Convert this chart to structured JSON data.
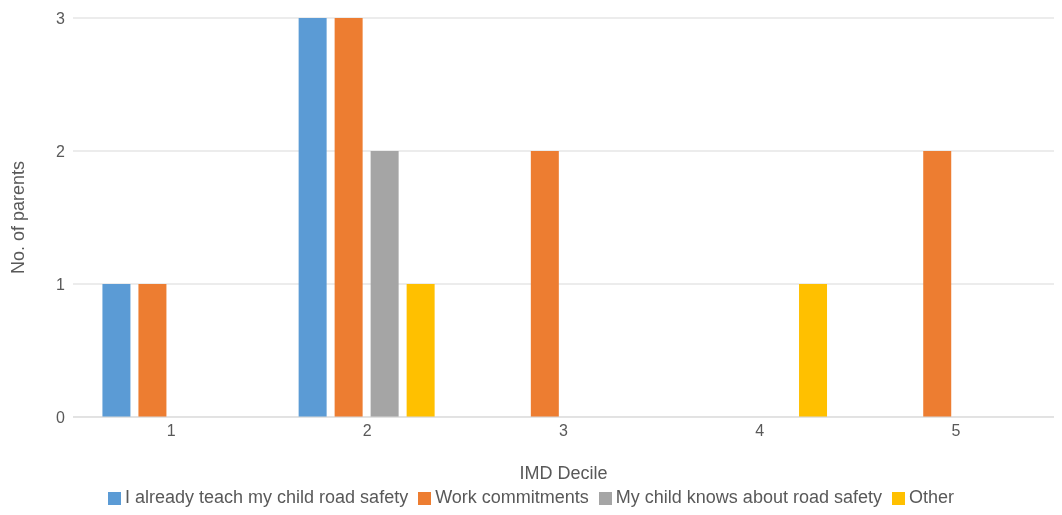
{
  "chart_data": {
    "type": "bar",
    "xlabel": "IMD Decile",
    "ylabel": "No. of parents",
    "categories": [
      "1",
      "2",
      "3",
      "4",
      "5"
    ],
    "series": [
      {
        "name": "I already teach my child road safety",
        "color": "#5b9bd5",
        "values": [
          1,
          3,
          0,
          0,
          0
        ]
      },
      {
        "name": "Work commitments",
        "color": "#ed7d31",
        "values": [
          1,
          3,
          2,
          0,
          2
        ]
      },
      {
        "name": "My child knows about road safety",
        "color": "#a5a5a5",
        "values": [
          0,
          2,
          0,
          0,
          0
        ]
      },
      {
        "name": "Other",
        "color": "#ffc000",
        "values": [
          0,
          1,
          0,
          1,
          0
        ]
      }
    ],
    "ylim": [
      0,
      3
    ],
    "yticks": [
      0,
      1,
      2,
      3
    ],
    "grid": "y",
    "legend": "bottom"
  }
}
